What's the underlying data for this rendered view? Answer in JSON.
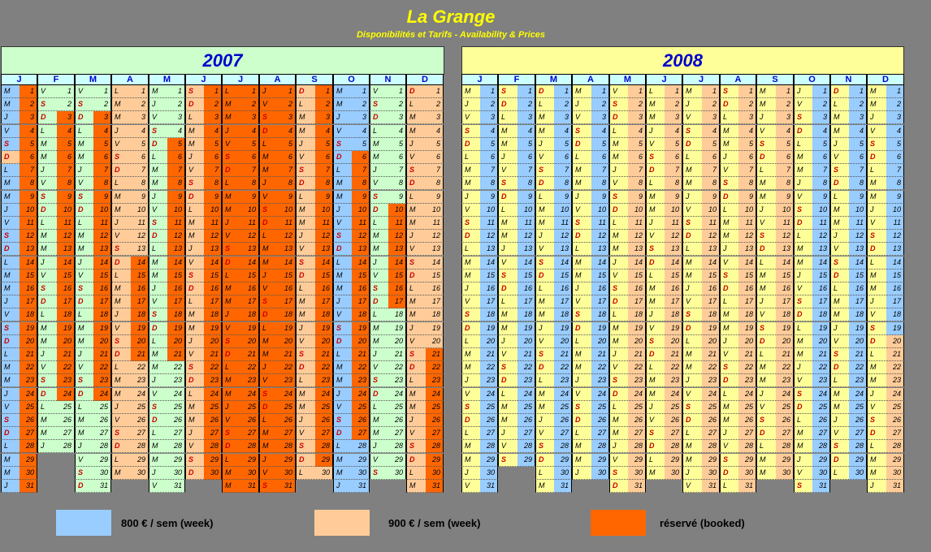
{
  "header": {
    "title": "La Grange",
    "subtitle": "Disponibilités et Tarifs   -    Availability & Prices"
  },
  "years": [
    {
      "label": "2007",
      "bg": "#ccffcc",
      "base": "mint",
      "months": [
        {
          "h": "J",
          "len": 31,
          "start": 1,
          "segs": [
            [
              "blue",
              1,
              5
            ],
            [
              "peach",
              6,
              6
            ],
            [
              "blue",
              7,
              31
            ]
          ],
          "right": [
            [
              "orange",
              1,
              31
            ]
          ]
        },
        {
          "h": "F",
          "len": 28,
          "start": 4,
          "segs": [
            [
              "mint",
              1,
              28
            ]
          ],
          "right": [
            [
              "orange",
              3,
              24
            ]
          ]
        },
        {
          "h": "M",
          "len": 31,
          "start": 4,
          "segs": [
            [
              "mint",
              1,
              31
            ]
          ],
          "right": [
            [
              "orange",
              3,
              24
            ]
          ]
        },
        {
          "h": "A",
          "len": 30,
          "start": 0,
          "segs": [
            [
              "peach",
              1,
              30
            ]
          ],
          "right": [
            [
              "orange",
              14,
              21
            ]
          ]
        },
        {
          "h": "M",
          "len": 31,
          "start": 2,
          "segs": [
            [
              "mint",
              1,
              31
            ]
          ],
          "right": [
            [
              "orange",
              5,
              21
            ]
          ]
        },
        {
          "h": "J",
          "len": 30,
          "start": 5,
          "segs": [
            [
              "peach",
              1,
              30
            ]
          ],
          "right": [
            [
              "orange",
              1,
              30
            ]
          ]
        },
        {
          "h": "J",
          "len": 31,
          "start": 0,
          "segs": [
            [
              "orange",
              1,
              31
            ]
          ],
          "right": [
            [
              "orange",
              1,
              31
            ]
          ]
        },
        {
          "h": "A",
          "len": 31,
          "start": 3,
          "segs": [
            [
              "orange",
              1,
              31
            ]
          ],
          "right": [
            [
              "orange",
              1,
              31
            ]
          ]
        },
        {
          "h": "S",
          "len": 30,
          "start": 6,
          "segs": [
            [
              "peach",
              1,
              30
            ]
          ],
          "right": [
            [
              "orange",
              1,
              29
            ]
          ]
        },
        {
          "h": "O",
          "len": 31,
          "start": 1,
          "segs": [
            [
              "blue",
              1,
              31
            ]
          ],
          "right": [
            [
              "orange",
              6,
              27
            ]
          ]
        },
        {
          "h": "N",
          "len": 30,
          "start": 4,
          "segs": [
            [
              "mint",
              1,
              30
            ]
          ],
          "right": [
            [
              "orange",
              10,
              17
            ]
          ]
        },
        {
          "h": "D",
          "len": 31,
          "start": 6,
          "segs": [
            [
              "peach",
              1,
              31
            ]
          ],
          "right": [
            [
              "orange",
              21,
              31
            ]
          ]
        }
      ]
    },
    {
      "label": "2008",
      "bg": "#ffff99",
      "base": "yellow",
      "months": [
        {
          "h": "J",
          "len": 31,
          "start": 2,
          "segs": [
            [
              "yellow",
              1,
              31
            ]
          ],
          "right": [
            [
              "blue",
              1,
              31
            ]
          ]
        },
        {
          "h": "F",
          "len": 29,
          "start": 5,
          "segs": [
            [
              "yellow",
              1,
              29
            ]
          ],
          "right": [
            [
              "blue",
              1,
              29
            ]
          ]
        },
        {
          "h": "M",
          "len": 31,
          "start": 6,
          "segs": [
            [
              "yellow",
              1,
              31
            ]
          ],
          "right": [
            [
              "blue",
              1,
              31
            ]
          ]
        },
        {
          "h": "A",
          "len": 30,
          "start": 2,
          "segs": [
            [
              "yellow",
              1,
              30
            ]
          ],
          "right": [
            [
              "blue",
              1,
              30
            ]
          ]
        },
        {
          "h": "M",
          "len": 31,
          "start": 4,
          "segs": [
            [
              "yellow",
              1,
              31
            ]
          ],
          "right": [
            [
              "peach",
              1,
              31
            ]
          ]
        },
        {
          "h": "J",
          "len": 30,
          "start": 0,
          "segs": [
            [
              "yellow",
              1,
              30
            ]
          ],
          "right": [
            [
              "peach",
              1,
              30
            ]
          ]
        },
        {
          "h": "J",
          "len": 31,
          "start": 2,
          "segs": [
            [
              "yellow",
              1,
              31
            ]
          ],
          "right": [
            [
              "peach",
              1,
              31
            ]
          ]
        },
        {
          "h": "A",
          "len": 31,
          "start": 5,
          "segs": [
            [
              "yellow",
              1,
              31
            ]
          ],
          "right": [
            [
              "peach",
              1,
              31
            ]
          ]
        },
        {
          "h": "S",
          "len": 30,
          "start": 1,
          "segs": [
            [
              "yellow",
              1,
              30
            ]
          ],
          "right": [
            [
              "peach",
              1,
              30
            ]
          ]
        },
        {
          "h": "O",
          "len": 31,
          "start": 3,
          "segs": [
            [
              "yellow",
              1,
              31
            ]
          ],
          "right": [
            [
              "blue",
              1,
              31
            ]
          ]
        },
        {
          "h": "N",
          "len": 30,
          "start": 6,
          "segs": [
            [
              "yellow",
              1,
              30
            ]
          ],
          "right": [
            [
              "blue",
              1,
              30
            ]
          ]
        },
        {
          "h": "D",
          "len": 31,
          "start": 1,
          "segs": [
            [
              "yellow",
              1,
              31
            ]
          ],
          "right": [
            [
              "blue",
              1,
              19
            ],
            [
              "peach",
              20,
              31
            ]
          ]
        }
      ]
    }
  ],
  "weekdays": [
    "L",
    "M",
    "M",
    "J",
    "V",
    "S",
    "D"
  ],
  "legend": [
    {
      "color": "#99ccff",
      "label": "800 € / sem (week)"
    },
    {
      "color": "#ffcc99",
      "label": "900 € / sem (week)"
    },
    {
      "color": "#ff6600",
      "label": "réservé (booked)"
    }
  ]
}
